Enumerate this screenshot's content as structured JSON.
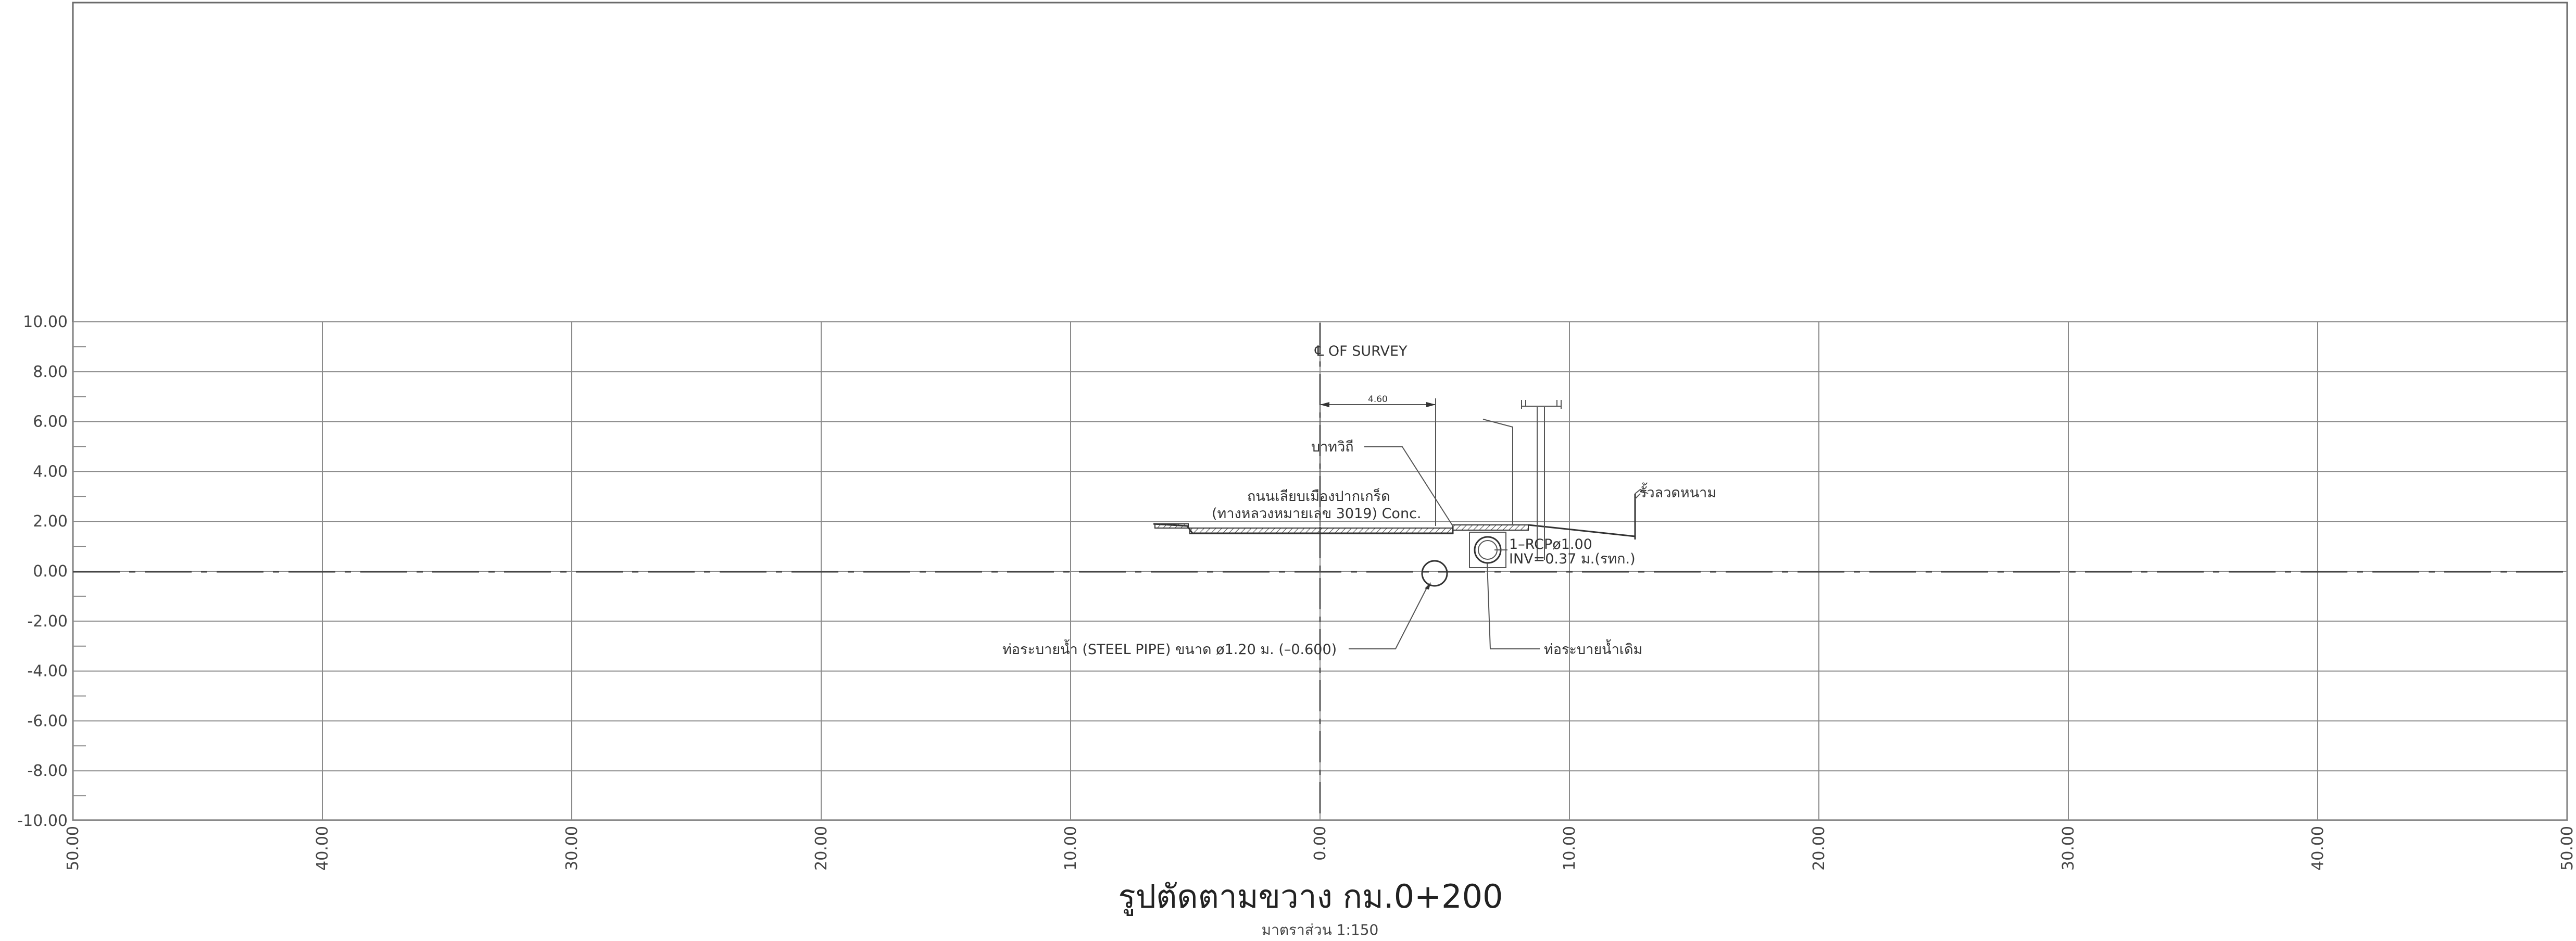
{
  "drawing": {
    "title": "รูปตัดตามขวาง กม.0+200",
    "scale": "มาตราส่วน 1:150",
    "y_ticks": [
      "10.00",
      "8.00",
      "6.00",
      "4.00",
      "2.00",
      "0.00",
      "-2.00",
      "-4.00",
      "-6.00",
      "-8.00",
      "-10.00"
    ],
    "x_ticks": [
      "50.00",
      "40.00",
      "30.00",
      "20.00",
      "10.00",
      "0.00",
      "10.00",
      "20.00",
      "30.00",
      "40.00",
      "50.00"
    ],
    "x_range": [
      -50,
      50
    ],
    "y_range": [
      -10,
      10
    ],
    "survey_label": "℄ OF SURVEY",
    "dimension": "4.60",
    "labels": {
      "sidewalk": "บาทวิถี",
      "road_name": "ถนนเลียบเมืองปากเกร็ด",
      "road_detail": "(ทางหลวงหมายเลข 3019) Conc.",
      "fence": "รั้วลวดหนาม",
      "rcp": "1–RCPø1.00",
      "inv": "INV=0.37 ม.(รทก.)",
      "steel_pipe": "ท่อระบายน้ำ (STEEL PIPE) ขนาด ø1.20 ม. (–0.600)",
      "existing_drain": "ท่อระบายน้ำเดิม"
    },
    "features": {
      "steel_pipe_center": [
        4.6,
        -0.1
      ],
      "steel_pipe_diameter": 1.2,
      "rcp_diameter": 1.0
    }
  }
}
